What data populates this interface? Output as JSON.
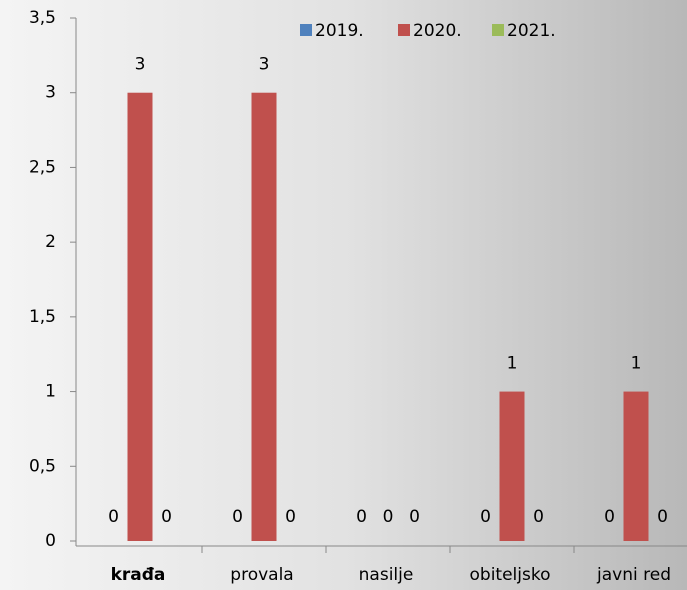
{
  "chart_data": {
    "type": "bar",
    "categories": [
      "krađa",
      "provala",
      "nasilje",
      "obiteljsko",
      "javni red"
    ],
    "series": [
      {
        "name": "2019.",
        "color": "#4f81bd",
        "values": [
          0,
          0,
          0,
          0,
          0
        ]
      },
      {
        "name": "2020.",
        "color": "#c0504d",
        "values": [
          3,
          3,
          0,
          1,
          1
        ]
      },
      {
        "name": "2021.",
        "color": "#9bbb59",
        "values": [
          0,
          0,
          0,
          0,
          0
        ]
      }
    ],
    "ylim": [
      0,
      3.5
    ],
    "yticks": [
      0,
      {
        "value": 0.5,
        "label": "0,5"
      },
      1,
      {
        "value": 1.5,
        "label": "1,5"
      },
      2,
      {
        "value": 2.5,
        "label": "2,5"
      },
      3,
      {
        "value": 3.5,
        "label": "3,5"
      }
    ],
    "legend": "top",
    "grid": false
  }
}
